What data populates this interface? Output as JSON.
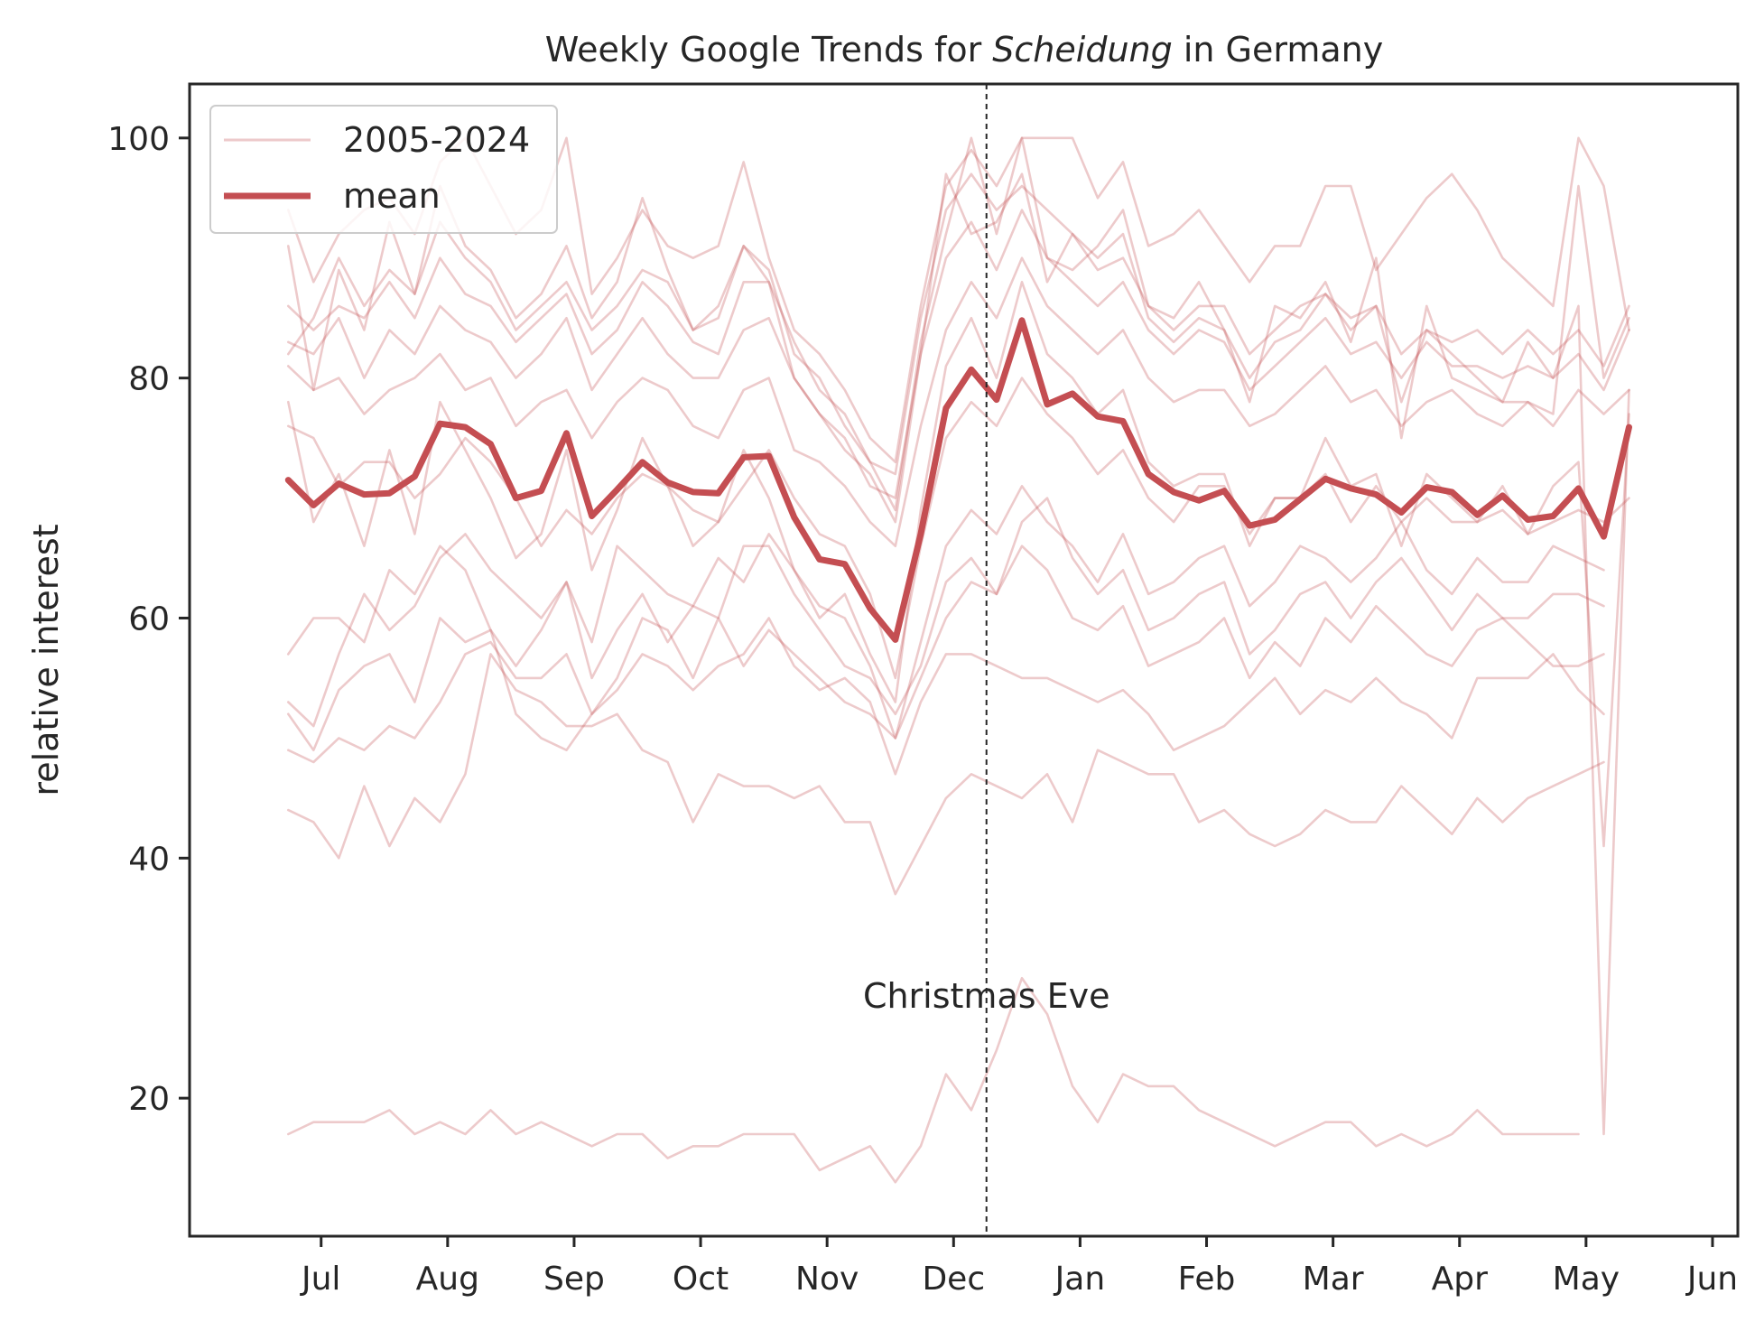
{
  "chart_data": {
    "type": "line",
    "title_prefix": "Weekly Google Trends for ",
    "title_italic": "Scheidung",
    "title_suffix": " in Germany",
    "xlabel": "",
    "ylabel": "relative interest",
    "ylim": [
      8.5,
      104.5
    ],
    "xlim": [
      -3.9,
      57.3
    ],
    "yticks": [
      20,
      40,
      60,
      80,
      100
    ],
    "xticks": [
      {
        "label": "Jul",
        "x": 1.3
      },
      {
        "label": "Aug",
        "x": 6.3
      },
      {
        "label": "Sep",
        "x": 11.3
      },
      {
        "label": "Oct",
        "x": 16.3
      },
      {
        "label": "Nov",
        "x": 21.3
      },
      {
        "label": "Dec",
        "x": 26.3
      },
      {
        "label": "Jan",
        "x": 31.3
      },
      {
        "label": "Feb",
        "x": 36.3
      },
      {
        "label": "Mar",
        "x": 41.3
      },
      {
        "label": "Apr",
        "x": 46.3
      },
      {
        "label": "May",
        "x": 51.3
      },
      {
        "label": "Jun",
        "x": 56.3
      }
    ],
    "annotation": {
      "label": "Christmas Eve",
      "x": 27.6,
      "y": 28.5
    },
    "vline_x": 27.6,
    "legend": {
      "position": "upper left",
      "entries": [
        "2005-2024",
        "mean"
      ]
    },
    "grid": false,
    "colors": {
      "series": "#c44e52",
      "text": "#262626",
      "axis": "#262626"
    },
    "series": [
      {
        "values": [
          71.5,
          69.4,
          71.2,
          70.3,
          70.4,
          71.8,
          76.2,
          75.9,
          74.5,
          70.0,
          70.6,
          75.4,
          68.5,
          70.7,
          73.0,
          71.3,
          70.5,
          70.4,
          73.4,
          73.5,
          68.4,
          64.9,
          64.5,
          60.8,
          58.2,
          67.0,
          77.5,
          80.7,
          78.2,
          84.8,
          77.8,
          78.7,
          76.8,
          76.4,
          72.0,
          70.5,
          69.8,
          70.6,
          67.7,
          68.2,
          69.9,
          71.6,
          70.8,
          70.3,
          68.8,
          70.9,
          70.5,
          68.6,
          70.2,
          68.2,
          68.5,
          70.8,
          66.8,
          75.9
        ]
      },
      {
        "values": [
          17,
          18,
          18,
          18,
          19,
          17,
          18,
          17,
          19,
          17,
          18,
          17,
          16,
          17,
          17,
          15,
          16,
          16,
          17,
          17,
          17,
          14,
          15,
          16,
          13,
          16,
          22,
          19,
          24,
          30,
          27,
          21,
          18,
          22,
          21,
          21,
          19,
          18,
          17,
          16,
          17,
          18,
          18,
          16,
          17,
          16,
          17,
          19,
          17,
          17,
          17,
          17
        ]
      },
      {
        "values": [
          44,
          43,
          40,
          46,
          41,
          45,
          43,
          47,
          57,
          54,
          53,
          51,
          51,
          52,
          49,
          48,
          43,
          47,
          46,
          46,
          45,
          46,
          43,
          43,
          37,
          41,
          45,
          47,
          46,
          45,
          47,
          43,
          49,
          48,
          47,
          47,
          43,
          44,
          42,
          41,
          42,
          44,
          43,
          43,
          46,
          44,
          42,
          45,
          43,
          45,
          46,
          47,
          48
        ]
      },
      {
        "values": [
          49,
          48,
          50,
          49,
          51,
          50,
          53,
          57,
          58,
          55,
          55,
          57,
          52,
          54,
          57,
          56,
          54,
          56,
          57,
          60,
          56,
          54,
          55,
          53,
          47,
          53,
          57,
          57,
          56,
          55,
          55,
          54,
          53,
          54,
          52,
          49,
          50,
          51,
          53,
          55,
          52,
          54,
          53,
          55,
          53,
          52,
          50,
          55,
          55,
          55,
          57,
          54,
          52
        ]
      },
      {
        "values": [
          52,
          49,
          54,
          56,
          57,
          53,
          60,
          58,
          59,
          52,
          50,
          49,
          52,
          55,
          60,
          59,
          55,
          60,
          56,
          59,
          57,
          55,
          53,
          52,
          50,
          55,
          60,
          63,
          62,
          66,
          64,
          60,
          59,
          61,
          56,
          57,
          58,
          60,
          55,
          58,
          56,
          60,
          58,
          61,
          59,
          57,
          56,
          59,
          60,
          58,
          56,
          56,
          57
        ]
      },
      {
        "values": [
          57,
          60,
          60,
          58,
          64,
          62,
          66,
          64,
          59,
          56,
          59,
          63,
          55,
          59,
          62,
          58,
          61,
          60,
          66,
          66,
          62,
          59,
          56,
          55,
          52,
          56,
          63,
          65,
          62,
          68,
          70,
          65,
          62,
          64,
          59,
          60,
          62,
          63,
          57,
          59,
          62,
          63,
          60,
          63,
          65,
          62,
          59,
          62,
          60,
          60,
          62,
          62,
          61
        ]
      },
      {
        "values": [
          53,
          51,
          57,
          62,
          59,
          61,
          65,
          67,
          64,
          62,
          60,
          63,
          58,
          66,
          64,
          62,
          61,
          65,
          63,
          67,
          64,
          61,
          60,
          56,
          50,
          58,
          66,
          69,
          67,
          71,
          68,
          66,
          63,
          67,
          62,
          63,
          65,
          66,
          61,
          63,
          66,
          65,
          63,
          65,
          68,
          64,
          62,
          65,
          63,
          63,
          66,
          65,
          64
        ]
      },
      {
        "values": [
          76,
          75,
          71,
          73,
          73,
          70,
          72,
          75,
          73,
          70,
          66,
          69,
          67,
          70,
          72,
          71,
          69,
          68,
          71,
          74,
          70,
          67,
          66,
          62,
          55,
          66,
          75,
          78,
          76,
          80,
          77,
          75,
          72,
          74,
          70,
          68,
          71,
          71,
          67,
          70,
          70,
          72,
          68,
          71,
          68,
          70,
          68,
          68,
          69,
          67,
          68,
          69,
          68,
          70
        ]
      },
      {
        "values": [
          81,
          79,
          80,
          77,
          79,
          80,
          82,
          79,
          80,
          76,
          78,
          79,
          75,
          78,
          80,
          79,
          76,
          75,
          79,
          80,
          74,
          73,
          71,
          68,
          66,
          76,
          84,
          88,
          85,
          90,
          86,
          84,
          82,
          84,
          80,
          78,
          79,
          79,
          76,
          77,
          79,
          81,
          78,
          79,
          76,
          78,
          79,
          77,
          76,
          78,
          76,
          79,
          77,
          79
        ]
      },
      {
        "values": [
          83,
          82,
          85,
          80,
          84,
          82,
          86,
          84,
          83,
          80,
          82,
          85,
          79,
          82,
          85,
          82,
          80,
          80,
          84,
          85,
          80,
          77,
          75,
          71,
          70,
          82,
          90,
          93,
          89,
          94,
          90,
          88,
          86,
          88,
          84,
          82,
          84,
          83,
          79,
          81,
          83,
          85,
          82,
          83,
          80,
          83,
          81,
          81,
          80,
          81,
          80,
          82,
          79,
          84
        ]
      },
      {
        "values": [
          86,
          84,
          86,
          85,
          88,
          85,
          90,
          87,
          86,
          83,
          85,
          87,
          82,
          84,
          88,
          86,
          83,
          82,
          88,
          88,
          83,
          79,
          77,
          73,
          72,
          85,
          94,
          97,
          94,
          96,
          94,
          92,
          89,
          90,
          86,
          84,
          86,
          86,
          82,
          84,
          86,
          87,
          85,
          86,
          82,
          84,
          83,
          84,
          82,
          84,
          82,
          84,
          81,
          86
        ]
      },
      {
        "values": [
          91,
          79,
          89,
          84,
          93,
          87,
          96,
          91,
          89,
          85,
          87,
          91,
          85,
          88,
          95,
          89,
          84,
          85,
          91,
          89,
          82,
          80,
          76,
          73,
          69,
          83,
          92,
          100,
          92,
          100,
          90,
          89,
          91,
          94,
          86,
          85,
          88,
          84,
          78,
          86,
          85,
          88,
          83,
          90,
          75,
          86,
          80,
          79,
          78,
          78,
          77,
          96,
          80,
          85
        ]
      },
      {
        "values": [
          94,
          88,
          92,
          94,
          95,
          92,
          98,
          100,
          96,
          92,
          94,
          100,
          87,
          90,
          94,
          91,
          90,
          91,
          98,
          90,
          84,
          82,
          79,
          75,
          73,
          86,
          96,
          99,
          96,
          100,
          100,
          100,
          95,
          98,
          91,
          92,
          94,
          91,
          88,
          91,
          91,
          96,
          96,
          89,
          92,
          95,
          97,
          94,
          90,
          88,
          86,
          100,
          96,
          84
        ]
      },
      {
        "values": [
          78,
          68,
          72,
          66,
          74,
          67,
          78,
          74,
          70,
          65,
          67,
          74,
          64,
          69,
          75,
          71,
          66,
          68,
          74,
          70,
          64,
          60,
          62,
          57,
          53,
          69,
          81,
          85,
          80,
          88,
          82,
          80,
          77,
          79,
          73,
          71,
          72,
          72,
          66,
          70,
          70,
          75,
          71,
          72,
          66,
          72,
          70,
          68,
          71,
          67,
          71,
          73,
          41,
          77
        ]
      },
      {
        "values": [
          82,
          85,
          90,
          86,
          89,
          87,
          93,
          90,
          88,
          84,
          86,
          88,
          84,
          86,
          89,
          88,
          84,
          86,
          91,
          88,
          80,
          77,
          74,
          72,
          68,
          82,
          97,
          92,
          93,
          97,
          88,
          92,
          90,
          92,
          85,
          83,
          85,
          84,
          80,
          83,
          84,
          87,
          84,
          86,
          78,
          84,
          82,
          80,
          78,
          83,
          80,
          86,
          17,
          79
        ]
      }
    ]
  }
}
